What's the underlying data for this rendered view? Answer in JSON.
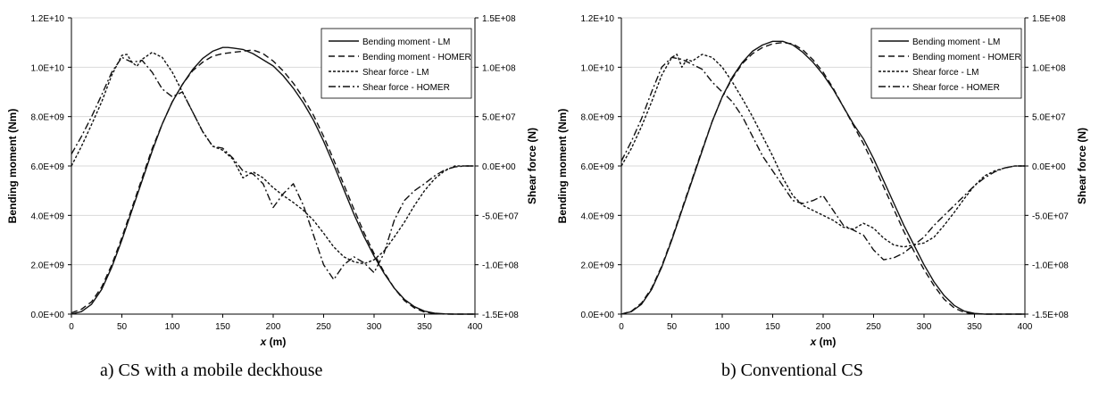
{
  "legend_entries": [
    "Bending moment - LM",
    "Bending moment - HOMER",
    "Shear force - LM",
    "Shear force - HOMER"
  ],
  "chart_data": [
    {
      "type": "line",
      "caption": "a) CS with a mobile deckhouse",
      "xlabel_prefix": "x",
      "xlabel_suffix": " (m)",
      "ylabel": "Bending moment (Nm)",
      "y2label": "Shear force (N)",
      "xlim": [
        0,
        400
      ],
      "ylim": [
        0,
        12000000000
      ],
      "y2lim": [
        -150000000,
        150000000
      ],
      "x_ticks": [
        "0",
        "50",
        "100",
        "150",
        "200",
        "250",
        "300",
        "350",
        "400"
      ],
      "y_ticks": [
        "0.0E+00",
        "2.0E+09",
        "4.0E+09",
        "6.0E+09",
        "8.0E+09",
        "1.0E+10",
        "1.2E+10"
      ],
      "y2_ticks": [
        "-1.5E+08",
        "-1.0E+08",
        "-5.0E+07",
        "0.0E+00",
        "5.0E+07",
        "1.0E+08",
        "1.5E+08"
      ],
      "grid": "horizontal",
      "legend_position": "top-right",
      "series": [
        {
          "name": "Bending moment - LM",
          "axis": "left",
          "style": "solid",
          "x": [
            0,
            10,
            20,
            30,
            40,
            50,
            60,
            70,
            80,
            90,
            100,
            110,
            120,
            130,
            140,
            150,
            155,
            160,
            170,
            180,
            190,
            200,
            210,
            220,
            230,
            240,
            250,
            260,
            270,
            280,
            290,
            300,
            310,
            320,
            330,
            340,
            350,
            360,
            370,
            380,
            390,
            400
          ],
          "y": [
            0,
            100000000,
            400000000,
            1000000000,
            1900000000,
            3000000000,
            4200000000,
            5400000000,
            6600000000,
            7700000000,
            8600000000,
            9300000000,
            9900000000,
            10350000000,
            10650000000,
            10800000000,
            10800000000,
            10780000000,
            10720000000,
            10550000000,
            10300000000,
            10050000000,
            9650000000,
            9150000000,
            8550000000,
            7850000000,
            7000000000,
            6050000000,
            5050000000,
            4050000000,
            3150000000,
            2350000000,
            1650000000,
            1050000000,
            600000000,
            300000000,
            120000000,
            40000000,
            10000000,
            0,
            0,
            0
          ]
        },
        {
          "name": "Bending moment - HOMER",
          "axis": "left",
          "style": "dashed",
          "x": [
            0,
            10,
            20,
            30,
            40,
            50,
            60,
            70,
            80,
            90,
            100,
            110,
            120,
            130,
            140,
            150,
            160,
            170,
            180,
            190,
            200,
            210,
            220,
            230,
            240,
            250,
            260,
            270,
            280,
            290,
            300,
            310,
            320,
            330,
            340,
            350,
            360,
            370,
            380,
            390,
            400
          ],
          "y": [
            50000000,
            200000000,
            500000000,
            1100000000,
            2000000000,
            3100000000,
            4300000000,
            5500000000,
            6700000000,
            7700000000,
            8600000000,
            9300000000,
            9850000000,
            10200000000,
            10450000000,
            10550000000,
            10600000000,
            10650000000,
            10700000000,
            10550000000,
            10250000000,
            9850000000,
            9350000000,
            8750000000,
            8050000000,
            7200000000,
            6250000000,
            5250000000,
            4250000000,
            3300000000,
            2450000000,
            1700000000,
            1050000000,
            550000000,
            250000000,
            80000000,
            20000000,
            0,
            0,
            0,
            0
          ]
        },
        {
          "name": "Shear force - LM",
          "axis": "right",
          "style": "short-dash",
          "x": [
            0,
            10,
            20,
            30,
            40,
            50,
            55,
            60,
            65,
            70,
            80,
            90,
            100,
            110,
            120,
            130,
            140,
            150,
            160,
            170,
            180,
            190,
            200,
            210,
            220,
            230,
            240,
            250,
            260,
            270,
            280,
            290,
            300,
            310,
            320,
            330,
            340,
            350,
            360,
            370,
            380,
            390,
            400
          ],
          "y": [
            0,
            20000000,
            42000000,
            65000000,
            92000000,
            112000000,
            113000000,
            105000000,
            101000000,
            108000000,
            115000000,
            110000000,
            95000000,
            75000000,
            55000000,
            35000000,
            20000000,
            16000000,
            7000000,
            -12000000,
            -6000000,
            -12000000,
            -22000000,
            -30000000,
            -37000000,
            -45000000,
            -55000000,
            -68000000,
            -82000000,
            -92000000,
            -97000000,
            -99000000,
            -95000000,
            -86000000,
            -72000000,
            -57000000,
            -40000000,
            -25000000,
            -13000000,
            -5000000,
            0,
            0,
            0
          ]
        },
        {
          "name": "Shear force - HOMER",
          "axis": "right",
          "style": "dash-dot",
          "x": [
            0,
            10,
            20,
            30,
            40,
            50,
            60,
            70,
            80,
            90,
            100,
            110,
            120,
            130,
            140,
            150,
            160,
            170,
            180,
            190,
            200,
            210,
            220,
            230,
            240,
            250,
            260,
            270,
            280,
            290,
            300,
            310,
            320,
            330,
            340,
            350,
            360,
            370,
            380,
            390,
            400
          ],
          "y": [
            12000000,
            30000000,
            50000000,
            72000000,
            95000000,
            110000000,
            105000000,
            107000000,
            95000000,
            78000000,
            70000000,
            75000000,
            55000000,
            35000000,
            20000000,
            18000000,
            8000000,
            -5000000,
            -8000000,
            -18000000,
            -42000000,
            -28000000,
            -18000000,
            -40000000,
            -70000000,
            -100000000,
            -115000000,
            -100000000,
            -92000000,
            -98000000,
            -108000000,
            -88000000,
            -55000000,
            -35000000,
            -25000000,
            -18000000,
            -10000000,
            -4000000,
            -1000000,
            0,
            0
          ]
        }
      ]
    },
    {
      "type": "line",
      "caption": "b) Conventional CS",
      "xlabel_prefix": "x",
      "xlabel_suffix": " (m)",
      "ylabel": "Bending moment (Nm)",
      "y2label": "Shear force (N)",
      "xlim": [
        0,
        400
      ],
      "ylim": [
        0,
        12000000000
      ],
      "y2lim": [
        -150000000,
        150000000
      ],
      "x_ticks": [
        "0",
        "50",
        "100",
        "150",
        "200",
        "250",
        "300",
        "350",
        "400"
      ],
      "y_ticks": [
        "0.0E+00",
        "2.0E+09",
        "4.0E+09",
        "6.0E+09",
        "8.0E+09",
        "1.0E+10",
        "1.2E+10"
      ],
      "y2_ticks": [
        "-1.5E+08",
        "-1.0E+08",
        "-5.0E+07",
        "0.0E+00",
        "5.0E+07",
        "1.0E+08",
        "1.5E+08"
      ],
      "grid": "horizontal",
      "legend_position": "top-right",
      "series": [
        {
          "name": "Bending moment - LM",
          "axis": "left",
          "style": "solid",
          "x": [
            0,
            10,
            20,
            30,
            40,
            50,
            60,
            70,
            80,
            90,
            100,
            110,
            120,
            130,
            140,
            150,
            160,
            170,
            180,
            190,
            200,
            210,
            220,
            230,
            240,
            250,
            260,
            270,
            280,
            290,
            300,
            310,
            320,
            330,
            340,
            350,
            360,
            370,
            380,
            390,
            400
          ],
          "y": [
            0,
            100000000,
            400000000,
            1000000000,
            1900000000,
            3000000000,
            4200000000,
            5400000000,
            6600000000,
            7800000000,
            8800000000,
            9600000000,
            10200000000,
            10650000000,
            10900000000,
            11050000000,
            11050000000,
            10900000000,
            10600000000,
            10200000000,
            9700000000,
            9100000000,
            8400000000,
            7700000000,
            7100000000,
            6300000000,
            5400000000,
            4500000000,
            3600000000,
            2800000000,
            2000000000,
            1300000000,
            750000000,
            350000000,
            120000000,
            30000000,
            0,
            0,
            0,
            0,
            0
          ]
        },
        {
          "name": "Bending moment - HOMER",
          "axis": "left",
          "style": "dashed",
          "x": [
            0,
            10,
            20,
            30,
            40,
            50,
            60,
            70,
            80,
            90,
            100,
            110,
            120,
            130,
            140,
            150,
            160,
            170,
            180,
            190,
            200,
            210,
            220,
            230,
            240,
            250,
            260,
            270,
            280,
            290,
            300,
            310,
            320,
            330,
            340,
            350,
            360,
            370,
            380,
            390,
            400
          ],
          "y": [
            0,
            120000000,
            450000000,
            1050000000,
            1950000000,
            3050000000,
            4250000000,
            5450000000,
            6650000000,
            7800000000,
            8800000000,
            9550000000,
            10150000000,
            10550000000,
            10800000000,
            10950000000,
            11000000000,
            10950000000,
            10700000000,
            10300000000,
            9800000000,
            9150000000,
            8400000000,
            7650000000,
            6900000000,
            6050000000,
            5150000000,
            4250000000,
            3350000000,
            2550000000,
            1800000000,
            1150000000,
            600000000,
            250000000,
            70000000,
            10000000,
            0,
            0,
            0,
            0,
            0
          ]
        },
        {
          "name": "Shear force - LM",
          "axis": "right",
          "style": "short-dash",
          "x": [
            0,
            10,
            20,
            30,
            40,
            50,
            55,
            60,
            65,
            70,
            80,
            90,
            100,
            110,
            120,
            130,
            140,
            150,
            160,
            170,
            180,
            190,
            200,
            210,
            220,
            230,
            240,
            250,
            260,
            270,
            280,
            290,
            300,
            310,
            320,
            330,
            340,
            350,
            360,
            370,
            380,
            390,
            400
          ],
          "y": [
            0,
            18000000,
            40000000,
            65000000,
            92000000,
            110000000,
            113000000,
            100000000,
            108000000,
            106000000,
            113000000,
            110000000,
            100000000,
            85000000,
            68000000,
            50000000,
            30000000,
            10000000,
            -12000000,
            -30000000,
            -40000000,
            -45000000,
            -50000000,
            -55000000,
            -62000000,
            -64000000,
            -58000000,
            -63000000,
            -73000000,
            -80000000,
            -82000000,
            -80000000,
            -78000000,
            -72000000,
            -60000000,
            -47000000,
            -33000000,
            -20000000,
            -10000000,
            -5000000,
            -2000000,
            0,
            0
          ]
        },
        {
          "name": "Shear force - HOMER",
          "axis": "right",
          "style": "dash-dot",
          "x": [
            0,
            10,
            20,
            30,
            40,
            50,
            60,
            70,
            80,
            90,
            100,
            110,
            120,
            130,
            140,
            150,
            160,
            170,
            180,
            190,
            200,
            210,
            220,
            230,
            240,
            250,
            260,
            270,
            280,
            290,
            300,
            310,
            320,
            330,
            340,
            350,
            360,
            370,
            380,
            390,
            400
          ],
          "y": [
            5000000,
            25000000,
            48000000,
            75000000,
            100000000,
            110000000,
            108000000,
            103000000,
            98000000,
            85000000,
            75000000,
            65000000,
            50000000,
            30000000,
            10000000,
            -5000000,
            -20000000,
            -35000000,
            -38000000,
            -35000000,
            -30000000,
            -45000000,
            -60000000,
            -65000000,
            -70000000,
            -85000000,
            -95000000,
            -93000000,
            -88000000,
            -80000000,
            -72000000,
            -60000000,
            -50000000,
            -40000000,
            -30000000,
            -20000000,
            -12000000,
            -6000000,
            -2000000,
            0,
            0
          ]
        }
      ]
    }
  ]
}
